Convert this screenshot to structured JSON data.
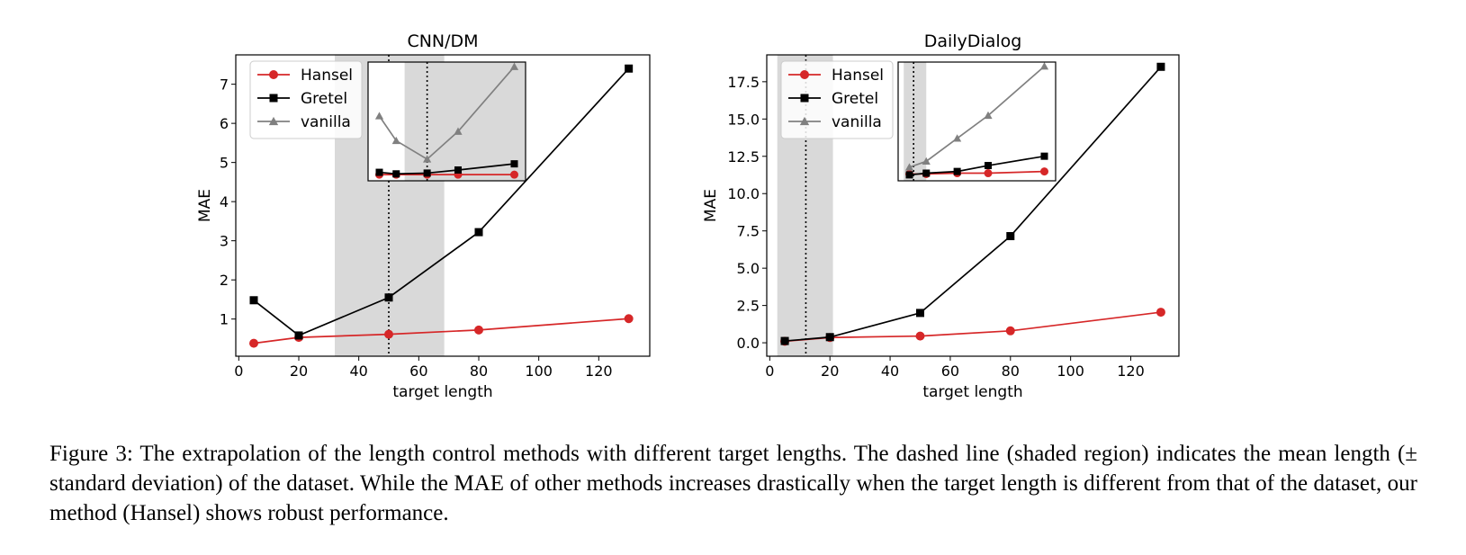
{
  "caption": "Figure 3: The extrapolation of the length control methods with different target lengths. The dashed line (shaded region) indicates the mean length (± standard deviation) of the dataset. While the MAE of other methods increases drastically when the target length is different from that of the dataset, our method (Hansel) shows robust performance.",
  "colors": {
    "Hansel": "#d62728",
    "Gretel": "#000000",
    "vanilla": "#808080",
    "shade": "#d9d9d9"
  },
  "chart_data": [
    {
      "type": "line",
      "title": "CNN/DM",
      "xlabel": "target length",
      "ylabel": "MAE",
      "xlim": [
        -1,
        137
      ],
      "ylim": [
        0.05,
        7.75
      ],
      "xticks": [
        0,
        20,
        40,
        60,
        80,
        100,
        120
      ],
      "yticks": [
        1,
        2,
        3,
        4,
        5,
        6,
        7
      ],
      "legend": "top-left",
      "mean_length": 50,
      "std_band": [
        32,
        68.5
      ],
      "series": [
        {
          "name": "Hansel",
          "marker": "circle",
          "x": [
            5,
            20,
            50,
            80,
            130
          ],
          "y": [
            0.38,
            0.53,
            0.61,
            0.72,
            1.01
          ]
        },
        {
          "name": "Gretel",
          "marker": "square",
          "x": [
            5,
            20,
            50,
            80,
            130
          ],
          "y": [
            1.48,
            0.58,
            1.55,
            3.22,
            7.4
          ]
        }
      ],
      "inset": {
        "xlim": [
          40,
          96
        ],
        "ylim": [
          0.6,
          8.3
        ],
        "mean_length": 61,
        "std_band": [
          53,
          200
        ],
        "series": [
          {
            "name": "Hansel",
            "marker": "circle",
            "x": [
              44,
              50,
              61,
              72,
              92
            ],
            "y": [
              1.0,
              1.0,
              1.0,
              1.0,
              1.0
            ]
          },
          {
            "name": "Gretel",
            "marker": "square",
            "x": [
              44,
              50,
              61,
              72,
              92
            ],
            "y": [
              1.15,
              1.05,
              1.1,
              1.3,
              1.7
            ]
          },
          {
            "name": "vanilla",
            "marker": "triangle",
            "x": [
              44,
              50,
              61,
              72,
              92
            ],
            "y": [
              4.8,
              3.2,
              2.0,
              3.8,
              8.0
            ]
          }
        ]
      }
    },
    {
      "type": "line",
      "title": "DailyDialog",
      "xlabel": "target length",
      "ylabel": "MAE",
      "xlim": [
        -1,
        136
      ],
      "ylim": [
        -0.9,
        19.3
      ],
      "xticks": [
        0,
        20,
        40,
        60,
        80,
        100,
        120
      ],
      "yticks": [
        0.0,
        2.5,
        5.0,
        7.5,
        10.0,
        12.5,
        15.0,
        17.5
      ],
      "ytick_labels": [
        "0.0",
        "2.5",
        "5.0",
        "7.5",
        "10.0",
        "12.5",
        "15.0",
        "17.5"
      ],
      "legend": "top-left",
      "mean_length": 12,
      "std_band": [
        2.5,
        21
      ],
      "series": [
        {
          "name": "Hansel",
          "marker": "circle",
          "x": [
            5,
            20,
            50,
            80,
            130
          ],
          "y": [
            0.1,
            0.35,
            0.45,
            0.8,
            2.05
          ]
        },
        {
          "name": "Gretel",
          "marker": "square",
          "x": [
            5,
            20,
            50,
            80,
            130
          ],
          "y": [
            0.12,
            0.38,
            2.0,
            7.15,
            18.5
          ]
        }
      ],
      "inset": {
        "xlim": [
          40,
          96
        ],
        "ylim": [
          -0.4,
          13.6
        ],
        "mean_length": 45.5,
        "std_band": [
          42,
          50
        ],
        "series": [
          {
            "name": "Hansel",
            "marker": "circle",
            "x": [
              44,
              50,
              61,
              72,
              92
            ],
            "y": [
              0.4,
              0.4,
              0.5,
              0.5,
              0.7
            ]
          },
          {
            "name": "Gretel",
            "marker": "square",
            "x": [
              44,
              50,
              61,
              72,
              92
            ],
            "y": [
              0.3,
              0.5,
              0.7,
              1.4,
              2.5
            ]
          },
          {
            "name": "vanilla",
            "marker": "triangle",
            "x": [
              44,
              50,
              61,
              72,
              92
            ],
            "y": [
              1.2,
              1.9,
              4.6,
              7.3,
              13.1
            ]
          }
        ]
      }
    }
  ]
}
